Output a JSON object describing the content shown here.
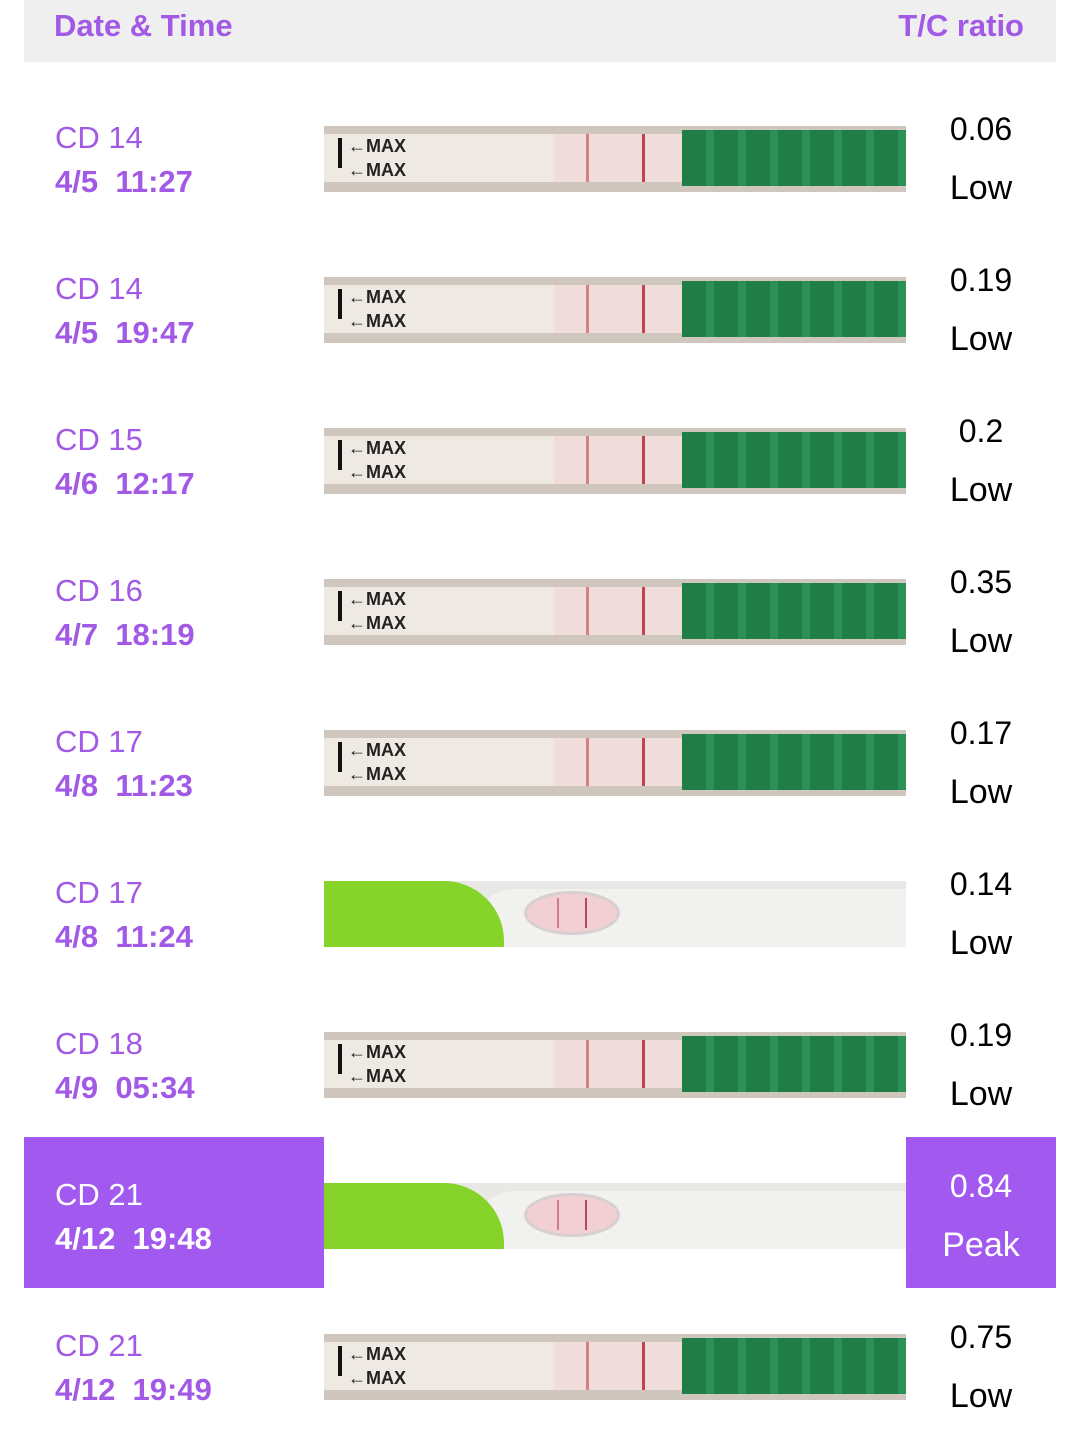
{
  "header": {
    "left_label": "Date & Time",
    "right_label": "T/C ratio"
  },
  "colors": {
    "accent": "#a259ef",
    "header_bg": "#efefef",
    "strip_green": "#1f7d45",
    "line_red": "#c2434f"
  },
  "rows": [
    {
      "cd": "CD 14",
      "date": "4/5  11:27",
      "ratio": "0.06",
      "level": "Low",
      "image": "lh-strip-photo",
      "type": "strip",
      "highlighted": false
    },
    {
      "cd": "CD 14",
      "date": "4/5  19:47",
      "ratio": "0.19",
      "level": "Low",
      "image": "lh-strip-photo",
      "type": "strip",
      "highlighted": false
    },
    {
      "cd": "CD 15",
      "date": "4/6  12:17",
      "ratio": "0.2",
      "level": "Low",
      "image": "lh-strip-photo",
      "type": "strip",
      "highlighted": false
    },
    {
      "cd": "CD 16",
      "date": "4/7  18:19",
      "ratio": "0.35",
      "level": "Low",
      "image": "lh-strip-photo",
      "type": "strip",
      "highlighted": false
    },
    {
      "cd": "CD 17",
      "date": "4/8  11:23",
      "ratio": "0.17",
      "level": "Low",
      "image": "lh-strip-photo",
      "type": "strip",
      "highlighted": false
    },
    {
      "cd": "CD 17",
      "date": "4/8  11:24",
      "ratio": "0.14",
      "level": "Low",
      "image": "midstream-test-photo",
      "type": "midstream",
      "highlighted": false
    },
    {
      "cd": "CD 18",
      "date": "4/9  05:34",
      "ratio": "0.19",
      "level": "Low",
      "image": "lh-strip-photo",
      "type": "strip",
      "highlighted": false
    },
    {
      "cd": "CD 21",
      "date": "4/12  19:48",
      "ratio": "0.84",
      "level": "Peak",
      "image": "midstream-test-photo",
      "type": "midstream",
      "highlighted": true
    },
    {
      "cd": "CD 21",
      "date": "4/12  19:49",
      "ratio": "0.75",
      "level": "Low",
      "image": "lh-strip-photo",
      "type": "strip",
      "highlighted": false
    }
  ],
  "strip_label": "←MAX"
}
